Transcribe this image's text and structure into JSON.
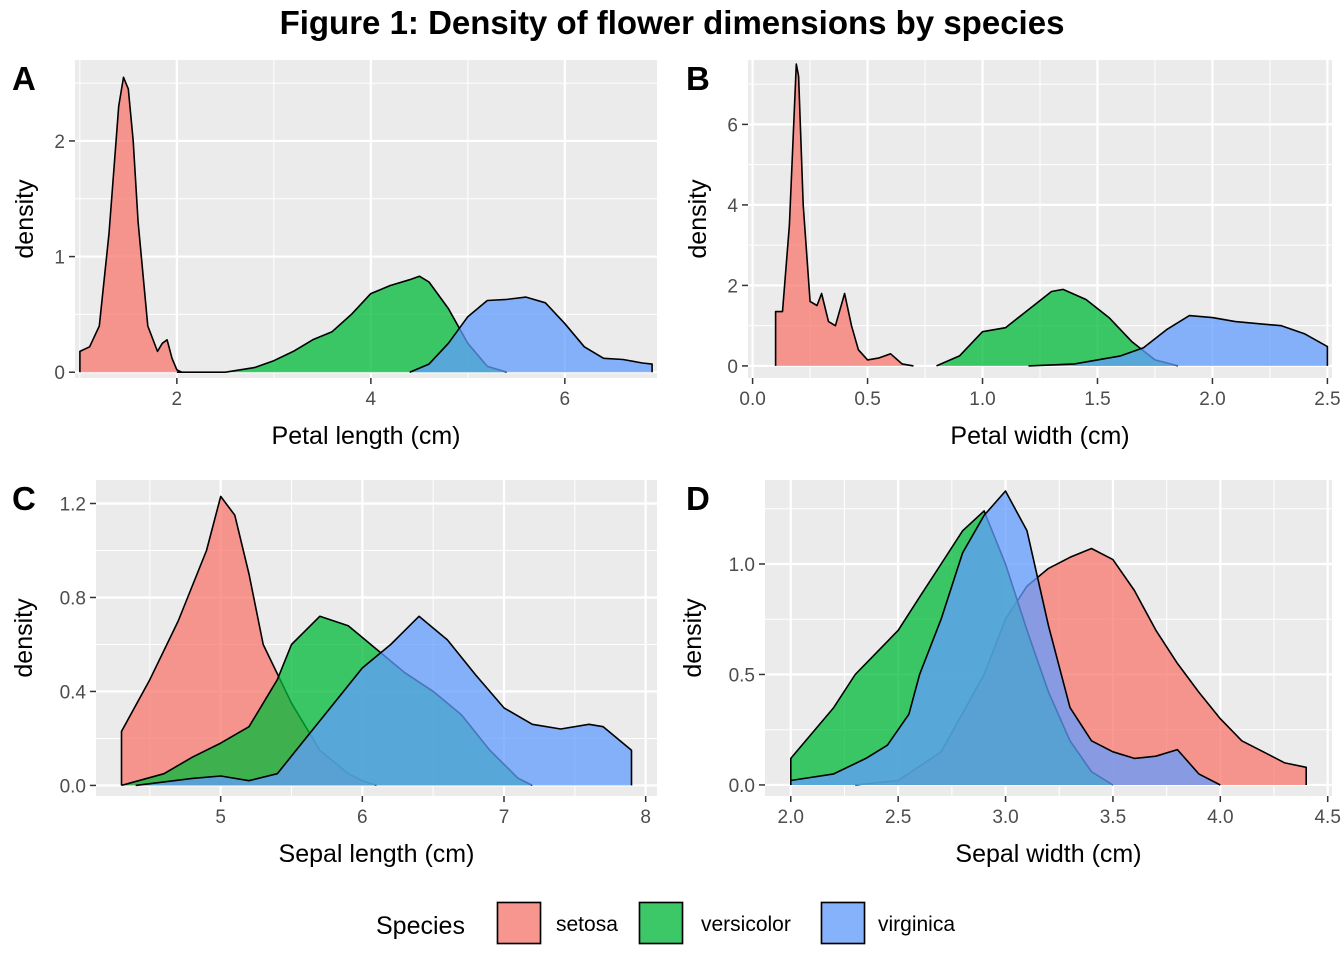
{
  "figure": {
    "title": "Figure 1: Density of flower dimensions by species",
    "legend": {
      "title": "Species",
      "position": "bottom",
      "entries": [
        {
          "name": "setosa",
          "color": "#F8766D"
        },
        {
          "name": "versicolor",
          "color": "#00BA38"
        },
        {
          "name": "virginica",
          "color": "#619CFF"
        }
      ]
    },
    "fill_alpha": 0.75,
    "panel_background": "#EBEBEB",
    "grid": true
  },
  "chart_data": [
    {
      "type": "area",
      "tag": "A",
      "xlabel": "Petal length (cm)",
      "ylabel": "density",
      "xlim": [
        0.95,
        6.95
      ],
      "ylim": [
        -0.05,
        2.7
      ],
      "xticks": [
        2,
        4,
        6
      ],
      "xtick_labels": [
        "2",
        "4",
        "6"
      ],
      "yticks": [
        0,
        1,
        2
      ],
      "ytick_labels": [
        "0",
        "1",
        "2"
      ],
      "series": [
        {
          "name": "setosa",
          "points": [
            [
              1.0,
              0.18
            ],
            [
              1.1,
              0.22
            ],
            [
              1.2,
              0.4
            ],
            [
              1.3,
              1.2
            ],
            [
              1.4,
              2.3
            ],
            [
              1.45,
              2.55
            ],
            [
              1.5,
              2.45
            ],
            [
              1.55,
              2.0
            ],
            [
              1.6,
              1.3
            ],
            [
              1.7,
              0.4
            ],
            [
              1.8,
              0.18
            ],
            [
              1.85,
              0.25
            ],
            [
              1.9,
              0.28
            ],
            [
              1.95,
              0.12
            ],
            [
              2.0,
              0.02
            ],
            [
              2.05,
              0.0
            ]
          ]
        },
        {
          "name": "versicolor",
          "points": [
            [
              2.0,
              0.0
            ],
            [
              2.5,
              0.0
            ],
            [
              2.8,
              0.04
            ],
            [
              3.0,
              0.1
            ],
            [
              3.2,
              0.18
            ],
            [
              3.4,
              0.28
            ],
            [
              3.6,
              0.35
            ],
            [
              3.8,
              0.5
            ],
            [
              4.0,
              0.68
            ],
            [
              4.2,
              0.75
            ],
            [
              4.4,
              0.8
            ],
            [
              4.5,
              0.83
            ],
            [
              4.6,
              0.78
            ],
            [
              4.8,
              0.55
            ],
            [
              5.0,
              0.25
            ],
            [
              5.2,
              0.05
            ],
            [
              5.4,
              0.0
            ]
          ]
        },
        {
          "name": "virginica",
          "points": [
            [
              4.4,
              0.0
            ],
            [
              4.6,
              0.07
            ],
            [
              4.8,
              0.25
            ],
            [
              5.0,
              0.48
            ],
            [
              5.2,
              0.62
            ],
            [
              5.4,
              0.63
            ],
            [
              5.6,
              0.65
            ],
            [
              5.8,
              0.6
            ],
            [
              6.0,
              0.42
            ],
            [
              6.2,
              0.22
            ],
            [
              6.4,
              0.12
            ],
            [
              6.6,
              0.11
            ],
            [
              6.8,
              0.08
            ],
            [
              6.9,
              0.07
            ]
          ]
        }
      ]
    },
    {
      "type": "area",
      "tag": "B",
      "xlabel": "Petal width (cm)",
      "ylabel": "density",
      "xlim": [
        -0.02,
        2.52
      ],
      "ylim": [
        -0.3,
        7.6
      ],
      "xticks": [
        0.0,
        0.5,
        1.0,
        1.5,
        2.0,
        2.5
      ],
      "xtick_labels": [
        "0.0",
        "0.5",
        "1.0",
        "1.5",
        "2.0",
        "2.5"
      ],
      "yticks": [
        0,
        2,
        4,
        6
      ],
      "ytick_labels": [
        "0",
        "2",
        "4",
        "6"
      ],
      "series": [
        {
          "name": "setosa",
          "points": [
            [
              0.1,
              1.35
            ],
            [
              0.13,
              1.35
            ],
            [
              0.16,
              3.5
            ],
            [
              0.19,
              7.5
            ],
            [
              0.2,
              7.2
            ],
            [
              0.22,
              4.0
            ],
            [
              0.25,
              1.6
            ],
            [
              0.28,
              1.5
            ],
            [
              0.3,
              1.8
            ],
            [
              0.33,
              1.1
            ],
            [
              0.36,
              1.0
            ],
            [
              0.4,
              1.8
            ],
            [
              0.43,
              1.0
            ],
            [
              0.46,
              0.4
            ],
            [
              0.5,
              0.15
            ],
            [
              0.55,
              0.2
            ],
            [
              0.6,
              0.3
            ],
            [
              0.65,
              0.05
            ],
            [
              0.7,
              0.0
            ]
          ]
        },
        {
          "name": "versicolor",
          "points": [
            [
              0.8,
              0.0
            ],
            [
              0.9,
              0.25
            ],
            [
              1.0,
              0.85
            ],
            [
              1.1,
              0.95
            ],
            [
              1.2,
              1.4
            ],
            [
              1.3,
              1.85
            ],
            [
              1.35,
              1.9
            ],
            [
              1.45,
              1.65
            ],
            [
              1.55,
              1.2
            ],
            [
              1.65,
              0.6
            ],
            [
              1.75,
              0.15
            ],
            [
              1.85,
              0.0
            ]
          ]
        },
        {
          "name": "virginica",
          "points": [
            [
              1.2,
              0.0
            ],
            [
              1.4,
              0.05
            ],
            [
              1.6,
              0.25
            ],
            [
              1.7,
              0.45
            ],
            [
              1.8,
              0.9
            ],
            [
              1.9,
              1.25
            ],
            [
              2.0,
              1.2
            ],
            [
              2.1,
              1.1
            ],
            [
              2.2,
              1.05
            ],
            [
              2.3,
              1.0
            ],
            [
              2.4,
              0.8
            ],
            [
              2.5,
              0.48
            ]
          ]
        }
      ]
    },
    {
      "type": "area",
      "tag": "C",
      "xlabel": "Sepal length (cm)",
      "ylabel": "density",
      "xlim": [
        4.12,
        8.08
      ],
      "ylim": [
        -0.045,
        1.3
      ],
      "xticks": [
        5,
        6,
        7,
        8
      ],
      "xtick_labels": [
        "5",
        "6",
        "7",
        "8"
      ],
      "yticks": [
        0.0,
        0.4,
        0.8,
        1.2
      ],
      "ytick_labels": [
        "0.0",
        "0.4",
        "0.8",
        "1.2"
      ],
      "series": [
        {
          "name": "setosa",
          "points": [
            [
              4.3,
              0.23
            ],
            [
              4.5,
              0.45
            ],
            [
              4.7,
              0.7
            ],
            [
              4.9,
              1.0
            ],
            [
              5.0,
              1.23
            ],
            [
              5.1,
              1.15
            ],
            [
              5.2,
              0.9
            ],
            [
              5.3,
              0.6
            ],
            [
              5.5,
              0.35
            ],
            [
              5.7,
              0.15
            ],
            [
              5.9,
              0.05
            ],
            [
              6.0,
              0.02
            ],
            [
              6.1,
              0.0
            ]
          ]
        },
        {
          "name": "versicolor",
          "points": [
            [
              4.3,
              0.0
            ],
            [
              4.6,
              0.05
            ],
            [
              4.8,
              0.12
            ],
            [
              5.0,
              0.18
            ],
            [
              5.2,
              0.25
            ],
            [
              5.4,
              0.45
            ],
            [
              5.5,
              0.6
            ],
            [
              5.7,
              0.72
            ],
            [
              5.9,
              0.68
            ],
            [
              6.1,
              0.58
            ],
            [
              6.3,
              0.48
            ],
            [
              6.5,
              0.4
            ],
            [
              6.7,
              0.3
            ],
            [
              6.9,
              0.15
            ],
            [
              7.1,
              0.03
            ],
            [
              7.2,
              0.0
            ]
          ]
        },
        {
          "name": "virginica",
          "points": [
            [
              4.4,
              0.0
            ],
            [
              4.8,
              0.03
            ],
            [
              5.0,
              0.04
            ],
            [
              5.2,
              0.02
            ],
            [
              5.4,
              0.05
            ],
            [
              5.6,
              0.2
            ],
            [
              5.8,
              0.35
            ],
            [
              6.0,
              0.5
            ],
            [
              6.2,
              0.6
            ],
            [
              6.4,
              0.72
            ],
            [
              6.6,
              0.62
            ],
            [
              6.8,
              0.47
            ],
            [
              7.0,
              0.33
            ],
            [
              7.2,
              0.26
            ],
            [
              7.4,
              0.24
            ],
            [
              7.6,
              0.26
            ],
            [
              7.7,
              0.25
            ],
            [
              7.9,
              0.15
            ]
          ]
        }
      ]
    },
    {
      "type": "area",
      "tag": "D",
      "xlabel": "Sepal width (cm)",
      "ylabel": "density",
      "xlim": [
        1.88,
        4.52
      ],
      "ylim": [
        -0.05,
        1.38
      ],
      "xticks": [
        2.0,
        2.5,
        3.0,
        3.5,
        4.0,
        4.5
      ],
      "xtick_labels": [
        "2.0",
        "2.5",
        "3.0",
        "3.5",
        "4.0",
        "4.5"
      ],
      "yticks": [
        0.0,
        0.5,
        1.0
      ],
      "ytick_labels": [
        "0.0",
        "0.5",
        "1.0"
      ],
      "series": [
        {
          "name": "setosa",
          "points": [
            [
              2.3,
              0.0
            ],
            [
              2.5,
              0.02
            ],
            [
              2.7,
              0.15
            ],
            [
              2.9,
              0.5
            ],
            [
              3.0,
              0.75
            ],
            [
              3.1,
              0.9
            ],
            [
              3.2,
              0.98
            ],
            [
              3.3,
              1.03
            ],
            [
              3.4,
              1.07
            ],
            [
              3.5,
              1.02
            ],
            [
              3.6,
              0.88
            ],
            [
              3.7,
              0.7
            ],
            [
              3.8,
              0.55
            ],
            [
              3.9,
              0.42
            ],
            [
              4.0,
              0.3
            ],
            [
              4.1,
              0.2
            ],
            [
              4.2,
              0.15
            ],
            [
              4.3,
              0.1
            ],
            [
              4.4,
              0.08
            ]
          ]
        },
        {
          "name": "versicolor",
          "points": [
            [
              2.0,
              0.12
            ],
            [
              2.2,
              0.35
            ],
            [
              2.3,
              0.5
            ],
            [
              2.4,
              0.6
            ],
            [
              2.5,
              0.7
            ],
            [
              2.6,
              0.85
            ],
            [
              2.7,
              1.0
            ],
            [
              2.8,
              1.15
            ],
            [
              2.9,
              1.24
            ],
            [
              3.0,
              1.0
            ],
            [
              3.1,
              0.7
            ],
            [
              3.2,
              0.42
            ],
            [
              3.3,
              0.2
            ],
            [
              3.4,
              0.06
            ],
            [
              3.5,
              0.0
            ]
          ]
        },
        {
          "name": "virginica",
          "points": [
            [
              2.0,
              0.02
            ],
            [
              2.2,
              0.05
            ],
            [
              2.35,
              0.12
            ],
            [
              2.45,
              0.18
            ],
            [
              2.55,
              0.32
            ],
            [
              2.6,
              0.5
            ],
            [
              2.7,
              0.75
            ],
            [
              2.8,
              1.05
            ],
            [
              2.9,
              1.22
            ],
            [
              3.0,
              1.33
            ],
            [
              3.1,
              1.15
            ],
            [
              3.2,
              0.72
            ],
            [
              3.3,
              0.35
            ],
            [
              3.4,
              0.2
            ],
            [
              3.5,
              0.15
            ],
            [
              3.6,
              0.12
            ],
            [
              3.7,
              0.13
            ],
            [
              3.8,
              0.16
            ],
            [
              3.9,
              0.05
            ],
            [
              4.0,
              0.0
            ]
          ]
        }
      ]
    }
  ]
}
